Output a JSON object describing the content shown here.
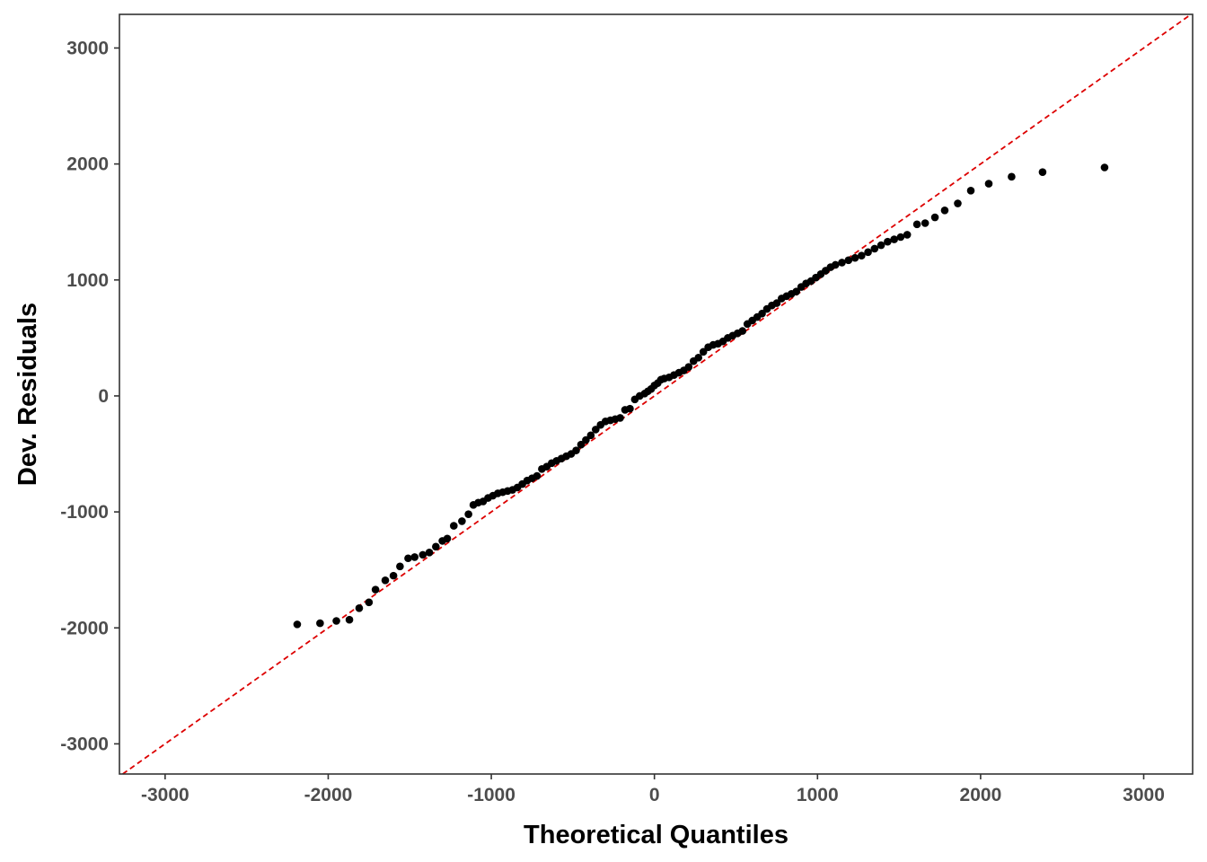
{
  "chart_data": {
    "type": "scatter",
    "title": "",
    "xlabel": "Theoretical Quantiles",
    "ylabel": "Dev. Residuals",
    "xlim": [
      -3280,
      3300
    ],
    "ylim": [
      -3260,
      3290
    ],
    "x_ticks": [
      -3000,
      -2000,
      -1000,
      0,
      1000,
      2000,
      3000
    ],
    "y_ticks": [
      -3000,
      -2000,
      -1000,
      0,
      1000,
      2000,
      3000
    ],
    "x_tick_labels": [
      "-3000",
      "-2000",
      "-1000",
      "0",
      "1000",
      "2000",
      "3000"
    ],
    "y_tick_labels": [
      "-3000",
      "-2000",
      "-1000",
      "0",
      "1000",
      "2000",
      "3000"
    ],
    "grid": false,
    "reference_line": {
      "slope": 1,
      "intercept": 0,
      "style": "dashed",
      "color": "#dd0000"
    },
    "point_color": "#000000",
    "series": [
      {
        "x": [
          -2190,
          -2050,
          -1950,
          -1870,
          -1810,
          -1750,
          -1710,
          -1650,
          -1600,
          -1560,
          -1510,
          -1470,
          -1420,
          -1380,
          -1340,
          -1300,
          -1270,
          -1230,
          -1180,
          -1140,
          -1110,
          -1080,
          -1050,
          -1020,
          -990,
          -960,
          -930,
          -900,
          -870,
          -840,
          -810,
          -780,
          -750,
          -720,
          -690,
          -660,
          -630,
          -600,
          -570,
          -540,
          -510,
          -480,
          -450,
          -420,
          -390,
          -360,
          -330,
          -300,
          -270,
          -240,
          -210,
          -180,
          -150,
          -120,
          -90,
          -60,
          -40,
          -20,
          0,
          20,
          40,
          60,
          90,
          120,
          150,
          180,
          210,
          240,
          270,
          300,
          330,
          360,
          390,
          420,
          450,
          480,
          510,
          540,
          570,
          600,
          630,
          660,
          690,
          720,
          750,
          780,
          810,
          840,
          870,
          900,
          930,
          960,
          990,
          1020,
          1050,
          1080,
          1110,
          1150,
          1190,
          1230,
          1270,
          1310,
          1350,
          1390,
          1430,
          1470,
          1510,
          1550,
          1610,
          1660,
          1720,
          1780,
          1860,
          1940,
          2050,
          2190,
          2380,
          2760
        ],
        "y": [
          -1970,
          -1960,
          -1940,
          -1930,
          -1830,
          -1780,
          -1670,
          -1590,
          -1550,
          -1470,
          -1400,
          -1390,
          -1370,
          -1350,
          -1300,
          -1250,
          -1230,
          -1120,
          -1080,
          -1020,
          -940,
          -920,
          -910,
          -880,
          -860,
          -840,
          -830,
          -820,
          -810,
          -790,
          -760,
          -730,
          -710,
          -690,
          -630,
          -610,
          -580,
          -560,
          -540,
          -520,
          -500,
          -470,
          -420,
          -380,
          -340,
          -290,
          -250,
          -220,
          -210,
          -200,
          -190,
          -120,
          -110,
          -30,
          0,
          20,
          40,
          60,
          90,
          110,
          140,
          150,
          160,
          180,
          200,
          220,
          250,
          300,
          330,
          380,
          420,
          440,
          450,
          470,
          500,
          520,
          540,
          560,
          620,
          650,
          680,
          710,
          750,
          780,
          800,
          840,
          860,
          880,
          900,
          940,
          970,
          990,
          1020,
          1050,
          1080,
          1110,
          1130,
          1150,
          1170,
          1190,
          1210,
          1240,
          1270,
          1300,
          1330,
          1350,
          1370,
          1390,
          1480,
          1490,
          1540,
          1600,
          1660,
          1770,
          1830,
          1890,
          1930,
          1970
        ]
      }
    ]
  }
}
